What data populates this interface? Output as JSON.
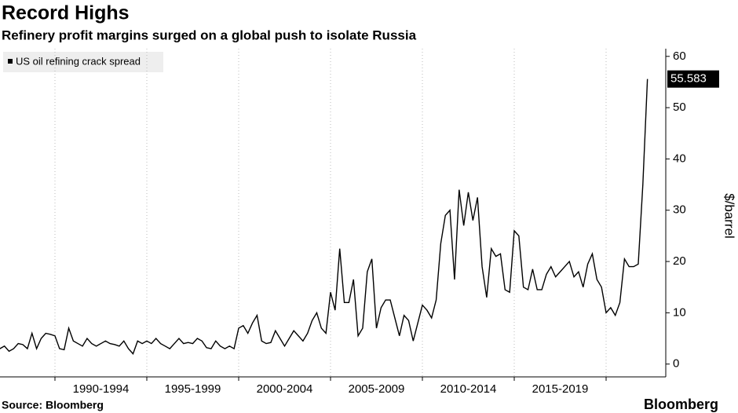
{
  "chart_data": {
    "type": "line",
    "title": "Record Highs",
    "subtitle": "Refinery profit margins surged on a global push to isolate Russia",
    "source": "Source: Bloomberg",
    "brand": "Bloomberg",
    "y_axis_label": "$/barrel",
    "x_labels": [
      "1990-1994",
      "1995-1999",
      "2000-2004",
      "2005-2009",
      "2010-2014",
      "2015-2019"
    ],
    "ylim": [
      -2.5,
      61.5
    ],
    "yticks": [
      0,
      10,
      20,
      30,
      40,
      50,
      60
    ],
    "legend": "top-left",
    "series": [
      {
        "name": "US oil refining crack spread",
        "color": "#000000",
        "values": [
          3,
          3.5,
          2.5,
          3,
          4,
          3.8,
          3,
          6,
          3,
          5,
          6,
          5.8,
          5.5,
          3,
          2.8,
          7,
          4.5,
          4,
          3.5,
          5,
          4,
          3.5,
          4,
          4.5,
          4,
          3.8,
          3.5,
          4.5,
          3,
          2,
          4.5,
          4,
          4.5,
          4,
          5,
          4,
          3.5,
          3,
          4,
          5,
          4,
          4.2,
          4,
          5,
          4.5,
          3.2,
          3,
          4.5,
          3.5,
          3,
          3.5,
          3,
          7,
          7.5,
          6,
          8,
          9.5,
          4.5,
          4,
          4.2,
          6.5,
          5,
          3.5,
          5,
          6.5,
          5.5,
          4.5,
          6,
          8.5,
          10,
          7,
          6,
          14,
          10.5,
          22.5,
          12,
          12,
          16.5,
          5.5,
          7,
          18,
          20.5,
          7,
          11,
          12.5,
          12.5,
          9,
          5.5,
          9.5,
          8.5,
          4.5,
          8,
          11.5,
          10.5,
          9,
          12.5,
          23.5,
          29,
          30,
          16.5,
          34,
          27,
          33.5,
          28,
          32.5,
          19,
          13,
          22.5,
          21,
          21.5,
          14.5,
          14,
          26,
          25,
          15,
          14.5,
          18.5,
          14.5,
          14.5,
          17.5,
          19,
          17,
          18,
          19,
          20,
          17,
          18,
          15,
          19.5,
          21.5,
          16.5,
          15,
          10,
          11,
          9.5,
          12,
          20.5,
          19,
          19,
          19.5,
          35,
          55.583
        ]
      }
    ]
  }
}
